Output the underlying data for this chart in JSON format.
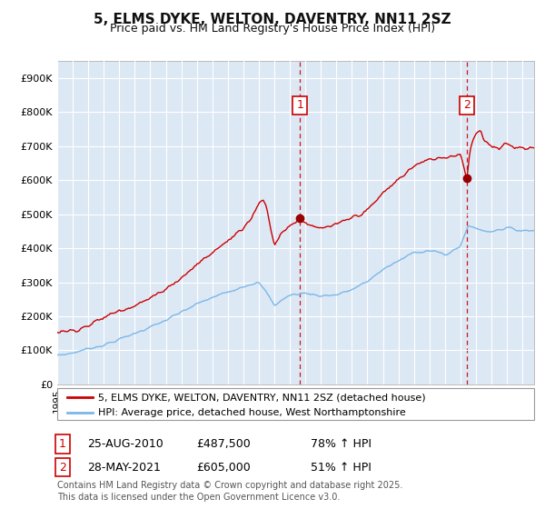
{
  "title": "5, ELMS DYKE, WELTON, DAVENTRY, NN11 2SZ",
  "subtitle": "Price paid vs. HM Land Registry's House Price Index (HPI)",
  "background_color": "#ffffff",
  "plot_bg_color": "#dde8f5",
  "grid_color": "#ffffff",
  "ylim": [
    0,
    950000
  ],
  "yticks": [
    0,
    100000,
    200000,
    300000,
    400000,
    500000,
    600000,
    700000,
    800000,
    900000
  ],
  "ytick_labels": [
    "£0",
    "£100K",
    "£200K",
    "£300K",
    "£400K",
    "£500K",
    "£600K",
    "£700K",
    "£800K",
    "£900K"
  ],
  "xlim_start": 1995.0,
  "xlim_end": 2025.75,
  "sale1_date": 2010.646,
  "sale1_price": 487500,
  "sale1_label": "1",
  "sale2_date": 2021.41,
  "sale2_price": 605000,
  "sale2_label": "2",
  "sale1_date_str": "25-AUG-2010",
  "sale1_price_str": "£487,500",
  "sale1_hpi_str": "78% ↑ HPI",
  "sale2_date_str": "28-MAY-2021",
  "sale2_price_str": "£605,000",
  "sale2_hpi_str": "51% ↑ HPI",
  "legend_line1": "5, ELMS DYKE, WELTON, DAVENTRY, NN11 2SZ (detached house)",
  "legend_line2": "HPI: Average price, detached house, West Northamptonshire",
  "footnote_line1": "Contains HM Land Registry data © Crown copyright and database right 2025.",
  "footnote_line2": "This data is licensed under the Open Government Licence v3.0.",
  "line_color_hpi": "#7ab8e8",
  "line_color_price": "#cc0000",
  "sale_dot_color": "#990000",
  "dashed_line_color": "#cc0000",
  "label_box_color": "#cc0000"
}
